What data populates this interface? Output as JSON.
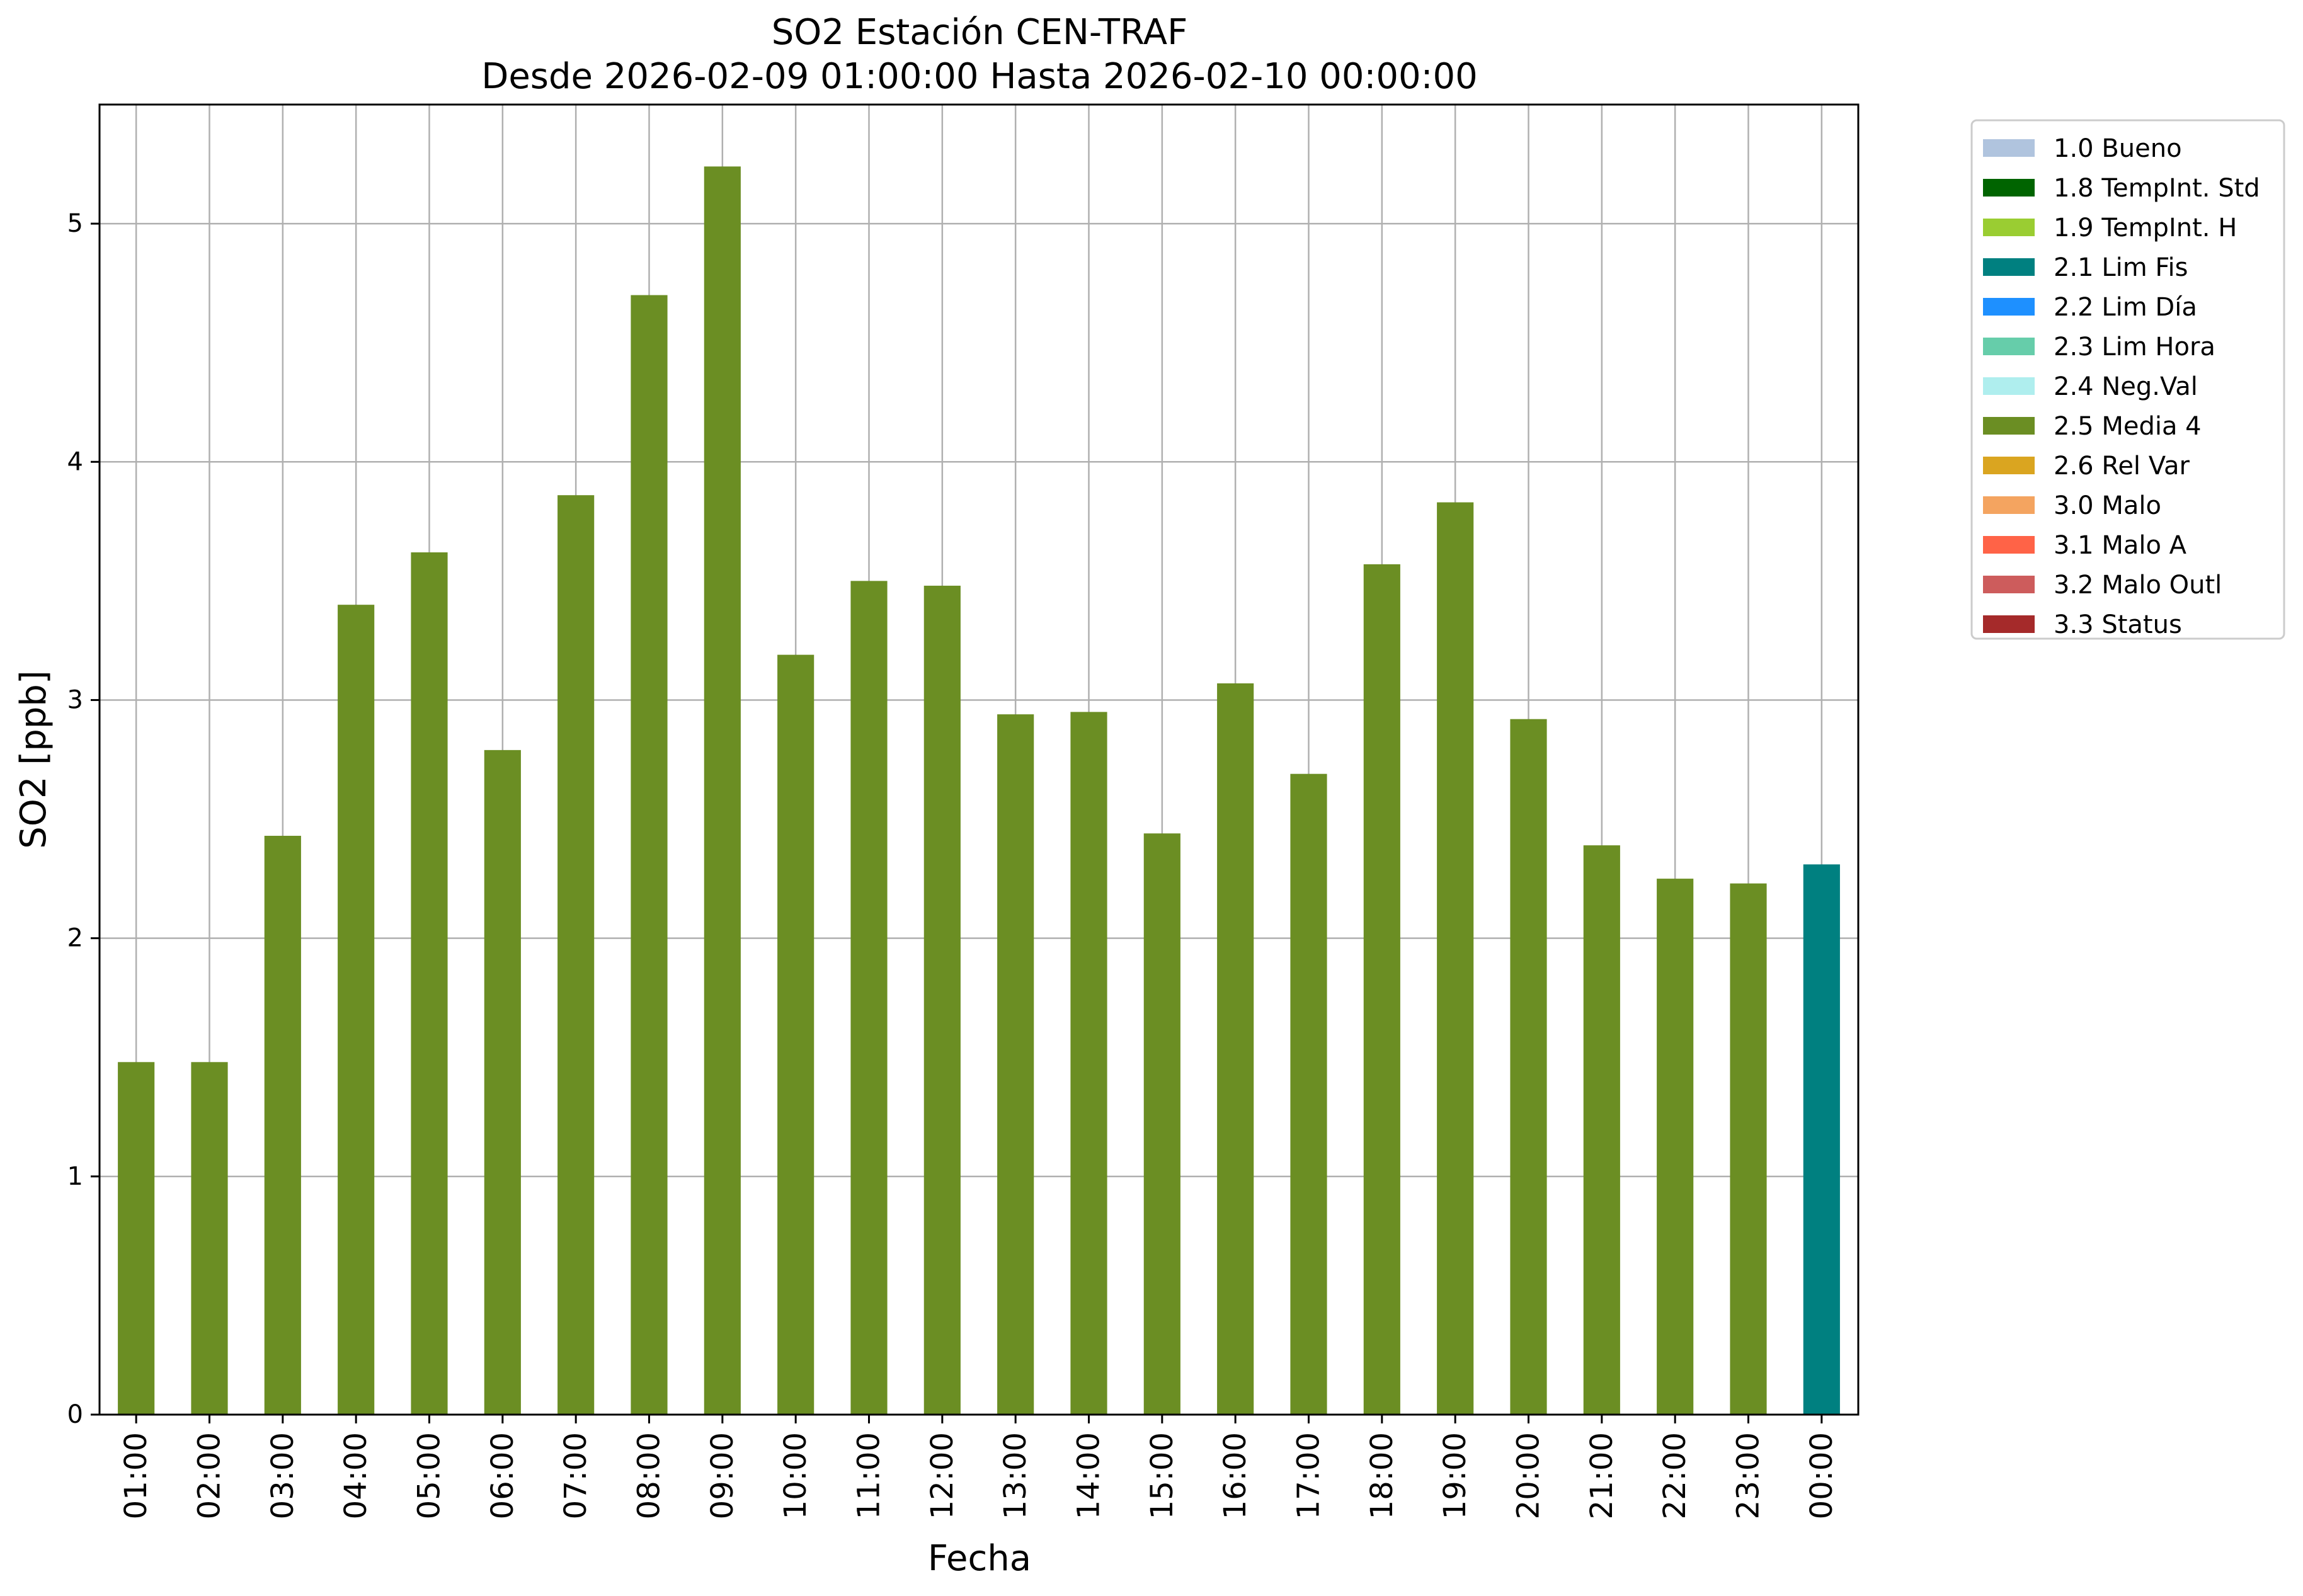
{
  "chart_data": {
    "type": "bar",
    "title": "SO2 Estación CEN-TRAF",
    "subtitle": "Desde 2026-02-09 01:00:00 Hasta 2026-02-10 00:00:00",
    "xlabel": "Fecha",
    "ylabel": "SO2 [ppb]",
    "ylim": [
      0,
      5.5
    ],
    "yticks": [
      "0",
      "1",
      "2",
      "3",
      "4",
      "5"
    ],
    "grid": true,
    "legend_position": "outside-top-right",
    "categories": [
      "01:00",
      "02:00",
      "03:00",
      "04:00",
      "05:00",
      "06:00",
      "07:00",
      "08:00",
      "09:00",
      "10:00",
      "11:00",
      "12:00",
      "13:00",
      "14:00",
      "15:00",
      "16:00",
      "17:00",
      "18:00",
      "19:00",
      "20:00",
      "21:00",
      "22:00",
      "23:00",
      "00:00"
    ],
    "values": [
      1.48,
      1.48,
      2.43,
      3.4,
      3.62,
      2.79,
      3.86,
      4.7,
      5.24,
      3.19,
      3.5,
      3.48,
      2.94,
      2.95,
      2.44,
      3.07,
      2.69,
      3.57,
      3.83,
      2.92,
      2.39,
      2.25,
      2.23,
      2.31
    ],
    "flags": [
      "2.5 Media 4",
      "2.5 Media 4",
      "2.5 Media 4",
      "2.5 Media 4",
      "2.5 Media 4",
      "2.5 Media 4",
      "2.5 Media 4",
      "2.5 Media 4",
      "2.5 Media 4",
      "2.5 Media 4",
      "2.5 Media 4",
      "2.5 Media 4",
      "2.5 Media 4",
      "2.5 Media 4",
      "2.5 Media 4",
      "2.5 Media 4",
      "2.5 Media 4",
      "2.5 Media 4",
      "2.5 Media 4",
      "2.5 Media 4",
      "2.5 Media 4",
      "2.5 Media 4",
      "2.5 Media 4",
      "2.1 Lim Fis"
    ],
    "legend": [
      {
        "label": "1.0 Bueno",
        "color": "#b0c4de"
      },
      {
        "label": "1.8 TempInt. Std",
        "color": "#006400"
      },
      {
        "label": "1.9 TempInt. H",
        "color": "#9acd32"
      },
      {
        "label": "2.1 Lim Fis",
        "color": "#008080"
      },
      {
        "label": "2.2 Lim Día",
        "color": "#1e90ff"
      },
      {
        "label": "2.3 Lim Hora",
        "color": "#66cdaa"
      },
      {
        "label": "2.4 Neg.Val",
        "color": "#afeeee"
      },
      {
        "label": "2.5 Media 4",
        "color": "#6b8e23"
      },
      {
        "label": "2.6 Rel Var",
        "color": "#daa520"
      },
      {
        "label": "3.0 Malo",
        "color": "#f4a460"
      },
      {
        "label": "3.1 Malo A",
        "color": "#ff6347"
      },
      {
        "label": "3.2 Malo Outl",
        "color": "#cd5c5c"
      },
      {
        "label": "3.3 Status",
        "color": "#a52a2a"
      }
    ],
    "colors": {
      "grid": "#b0b0b0",
      "axis": "#000000",
      "legend_border": "#cccccc"
    }
  }
}
